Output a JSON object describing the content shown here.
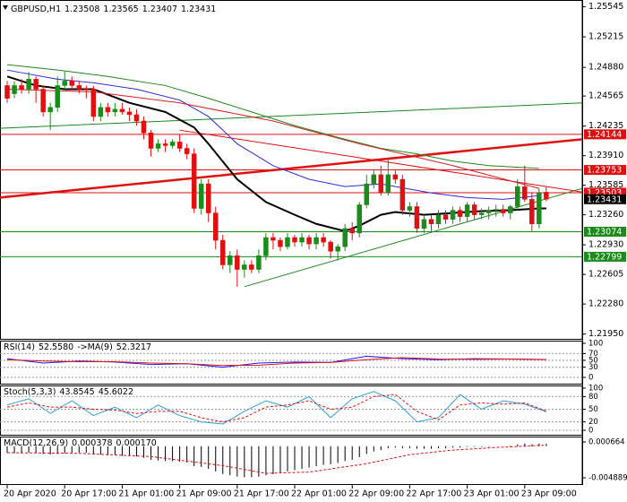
{
  "chart_data": {
    "type": "candlestick",
    "symbol": "GBPUSD,H1",
    "up_color": "#1a8c1a",
    "down_color": "#e01010",
    "current_color": "#000000",
    "xlim": [
      -1,
      80
    ],
    "xticks": [
      {
        "value": 0,
        "label": "20 Apr 2020"
      },
      {
        "value": 8,
        "label": "20 Apr 17:00"
      },
      {
        "value": 16,
        "label": "21 Apr 01:00"
      },
      {
        "value": 24,
        "label": "21 Apr 09:00"
      },
      {
        "value": 32,
        "label": "21 Apr 17:00"
      },
      {
        "value": 40,
        "label": "22 Apr 01:00"
      },
      {
        "value": 48,
        "label": "22 Apr 09:00"
      },
      {
        "value": 56,
        "label": "22 Apr 17:00"
      },
      {
        "value": 64,
        "label": "23 Apr 01:00"
      },
      {
        "value": 72,
        "label": "23 Apr 09:00"
      }
    ],
    "ylim": [
      1.21897,
      1.2562
    ],
    "yticks": [
      1.25545,
      1.25215,
      {
        "value": 1.2488,
        "label": "1.24880"
      },
      1.24565,
      1.24235,
      {
        "value": 1.2391,
        "label": "1.23910"
      },
      1.23585,
      {
        "value": 1.2326,
        "label": "1.23260"
      },
      {
        "value": 1.2293,
        "label": "1.22930"
      },
      1.22605,
      {
        "value": 1.2228,
        "label": "1.22280"
      },
      {
        "value": 1.2195,
        "label": "1.21950"
      }
    ],
    "candles": [
      [
        1.2468,
        1.2473,
        1.2449,
        1.2454
      ],
      [
        1.2459,
        1.2473,
        1.2454,
        1.2468
      ],
      [
        1.2468,
        1.2475,
        1.2459,
        1.2464
      ],
      [
        1.2464,
        1.2483,
        1.2459,
        1.2475
      ],
      [
        1.2475,
        1.2478,
        1.2449,
        1.2464
      ],
      [
        1.2464,
        1.2468,
        1.2434,
        1.2439
      ],
      [
        1.2439,
        1.2449,
        1.2419,
        1.2444
      ],
      [
        1.2444,
        1.2478,
        1.2439,
        1.2468
      ],
      [
        1.2468,
        1.2483,
        1.2464,
        1.2473
      ],
      [
        1.2473,
        1.2478,
        1.2464,
        1.2468
      ],
      [
        1.2468,
        1.2473,
        1.2459,
        1.2464
      ],
      [
        1.2464,
        1.2468,
        1.2454,
        1.2463
      ],
      [
        1.2464,
        1.2468,
        1.2429,
        1.2434
      ],
      [
        1.2434,
        1.2449,
        1.2429,
        1.2444
      ],
      [
        1.2444,
        1.2449,
        1.2434,
        1.2439
      ],
      [
        1.2439,
        1.2449,
        1.2434,
        1.2442
      ],
      [
        1.2442,
        1.2449,
        1.2436,
        1.2439
      ],
      [
        1.2439,
        1.2444,
        1.2429,
        1.2436
      ],
      [
        1.2436,
        1.2442,
        1.2424,
        1.2429
      ],
      [
        1.2429,
        1.2434,
        1.2409,
        1.2416
      ],
      [
        1.2416,
        1.2419,
        1.239,
        1.2399
      ],
      [
        1.2399,
        1.2409,
        1.2395,
        1.2404
      ],
      [
        1.2404,
        1.2409,
        1.2395,
        1.2402
      ],
      [
        1.2402,
        1.2409,
        1.2399,
        1.2406
      ],
      [
        1.2406,
        1.2414,
        1.2395,
        1.2399
      ],
      [
        1.2399,
        1.2404,
        1.2387,
        1.2393
      ],
      [
        1.2393,
        1.2399,
        1.2328,
        1.2333
      ],
      [
        1.2333,
        1.2365,
        1.2326,
        1.236
      ],
      [
        1.236,
        1.2365,
        1.2318,
        1.2328
      ],
      [
        1.2328,
        1.2335,
        1.2288,
        1.2298
      ],
      [
        1.2298,
        1.2304,
        1.2266,
        1.2271
      ],
      [
        1.2271,
        1.2286,
        1.2262,
        1.2281
      ],
      [
        1.2281,
        1.2288,
        1.2247,
        1.2266
      ],
      [
        1.2266,
        1.2276,
        1.2257,
        1.2271
      ],
      [
        1.2271,
        1.2276,
        1.2262,
        1.2266
      ],
      [
        1.2266,
        1.2288,
        1.2262,
        1.2281
      ],
      [
        1.2281,
        1.2306,
        1.2276,
        1.2301
      ],
      [
        1.2301,
        1.2306,
        1.2288,
        1.2298
      ],
      [
        1.2298,
        1.2301,
        1.2286,
        1.2291
      ],
      [
        1.2291,
        1.2306,
        1.2288,
        1.2301
      ],
      [
        1.2301,
        1.2304,
        1.2291,
        1.2296
      ],
      [
        1.2296,
        1.2306,
        1.2291,
        1.2301
      ],
      [
        1.2301,
        1.2304,
        1.2288,
        1.2294
      ],
      [
        1.2294,
        1.2306,
        1.2288,
        1.2301
      ],
      [
        1.2301,
        1.2306,
        1.2291,
        1.2296
      ],
      [
        1.2296,
        1.2298,
        1.2278,
        1.2286
      ],
      [
        1.2286,
        1.2294,
        1.2276,
        1.2291
      ],
      [
        1.2291,
        1.2316,
        1.2286,
        1.2311
      ],
      [
        1.2311,
        1.2318,
        1.2298,
        1.2306
      ],
      [
        1.2306,
        1.234,
        1.2301,
        1.2337
      ],
      [
        1.2337,
        1.237,
        1.2333,
        1.236
      ],
      [
        1.236,
        1.2375,
        1.2355,
        1.237
      ],
      [
        1.237,
        1.238,
        1.2347,
        1.235
      ],
      [
        1.235,
        1.2387,
        1.2347,
        1.237
      ],
      [
        1.237,
        1.2375,
        1.236,
        1.2365
      ],
      [
        1.2365,
        1.237,
        1.2326,
        1.2331
      ],
      [
        1.2331,
        1.234,
        1.2324,
        1.2335
      ],
      [
        1.2335,
        1.234,
        1.2306,
        1.2311
      ],
      [
        1.2311,
        1.2326,
        1.2306,
        1.2321
      ],
      [
        1.2321,
        1.2326,
        1.2308,
        1.2316
      ],
      [
        1.2316,
        1.2331,
        1.2311,
        1.2326
      ],
      [
        1.2326,
        1.2331,
        1.2316,
        1.2321
      ],
      [
        1.2321,
        1.2335,
        1.2316,
        1.2331
      ],
      [
        1.2331,
        1.2335,
        1.2318,
        1.2324
      ],
      [
        1.2324,
        1.234,
        1.2318,
        1.2337
      ],
      [
        1.2337,
        1.234,
        1.2321,
        1.2326
      ],
      [
        1.2326,
        1.2333,
        1.2321,
        1.2328
      ],
      [
        1.2328,
        1.2335,
        1.2321,
        1.2331
      ],
      [
        1.2331,
        1.2337,
        1.2324,
        1.2332
      ],
      [
        1.2332,
        1.2337,
        1.2324,
        1.2328
      ],
      [
        1.2328,
        1.2337,
        1.2321,
        1.2335
      ],
      [
        1.2335,
        1.2365,
        1.2331,
        1.2357
      ],
      [
        1.2357,
        1.238,
        1.234,
        1.2343
      ],
      [
        1.2343,
        1.235,
        1.2308,
        1.2316
      ],
      [
        1.2316,
        1.2355,
        1.2311,
        1.235
      ],
      [
        1.23508,
        1.23565,
        1.23407,
        1.23431
      ]
    ],
    "moving_averages": [
      {
        "color": "#000000",
        "width": 2,
        "x": [
          0,
          4,
          8,
          12,
          17,
          22,
          26,
          28,
          32,
          36,
          40,
          43,
          47,
          49,
          52,
          54,
          58,
          62,
          66,
          70,
          74,
          75
        ],
        "values": [
          1.2478,
          1.2468,
          1.2464,
          1.2464,
          1.2449,
          1.2439,
          1.2422,
          1.2404,
          1.2365,
          1.234,
          1.2326,
          1.2316,
          1.2308,
          1.2314,
          1.2326,
          1.2329,
          1.2326,
          1.2328,
          1.233,
          1.2331,
          1.2333,
          1.2333
        ]
      },
      {
        "color": "#2b2bd9",
        "width": 1,
        "x": [
          0,
          7,
          12,
          18,
          24,
          28,
          32,
          37,
          42,
          47,
          52,
          54,
          59,
          64,
          69,
          74
        ],
        "values": [
          1.2485,
          1.2475,
          1.2471,
          1.2464,
          1.2452,
          1.2434,
          1.2404,
          1.238,
          1.2365,
          1.2357,
          1.236,
          1.2357,
          1.235,
          1.2345,
          1.2343,
          1.2347
        ]
      },
      {
        "color": "#1b8a1b",
        "width": 1,
        "x": [
          0,
          7,
          14,
          22,
          28,
          34,
          40,
          47,
          52,
          57,
          62,
          67,
          74
        ],
        "values": [
          1.2491,
          1.2485,
          1.2478,
          1.2468,
          1.2454,
          1.2439,
          1.2424,
          1.2409,
          1.2399,
          1.2393,
          1.2385,
          1.238,
          1.2377
        ]
      },
      {
        "color": "#d22222",
        "width": 1,
        "x": [
          0,
          12,
          24,
          37,
          49,
          62,
          74
        ],
        "values": [
          1.2464,
          1.2461,
          1.2449,
          1.2429,
          1.2404,
          1.238,
          1.2355
        ]
      }
    ],
    "trendlines": [
      {
        "color": "#e01010",
        "width": 2.5,
        "x": [
          -1,
          80
        ],
        "values": [
          1.2345,
          1.2409
        ]
      },
      {
        "color": "#1b8a1b",
        "width": 1,
        "x": [
          -1,
          80
        ],
        "values": [
          1.2421,
          1.2449
        ]
      },
      {
        "color": "#1b8a1b",
        "width": 1,
        "x": [
          33,
          80
        ],
        "values": [
          1.2247,
          1.2355
        ]
      },
      {
        "color": "#e01010",
        "width": 1,
        "x": [
          24,
          80
        ],
        "values": [
          1.2419,
          1.2351
        ]
      }
    ],
    "levels": [
      {
        "value": 1.24144,
        "color": "#e01010"
      },
      {
        "value": 1.23753,
        "color": "#e01010"
      },
      {
        "value": 1.23503,
        "color": "#e01010"
      },
      {
        "value": 1.23074,
        "color": "#1a8c1a"
      },
      {
        "value": 1.22799,
        "color": "#1a8c1a"
      }
    ],
    "indicators": [
      {
        "ylim": [
          -18.4,
          107.9
        ],
        "yticks": [
          100,
          70,
          50,
          30,
          0
        ],
        "dashed_ticks": true,
        "series": [
          {
            "name": "RSI(14)",
            "color": "#1a1aff",
            "style": "line",
            "x": [
              0,
              5,
              10,
              15,
              20,
              25,
              30,
              35,
              40,
              45,
              50,
              55,
              60,
              65,
              70,
              75
            ],
            "values": [
              55,
              42,
              48,
              45,
              38,
              40,
              30,
              42,
              45,
              44,
              62,
              55,
              52,
              55,
              54,
              52.558
            ],
            "value_label": "52.5580"
          },
          {
            "name": "->MA(9)",
            "color": "#e01010",
            "style": "line",
            "x": [
              0,
              5,
              10,
              15,
              20,
              25,
              30,
              35,
              40,
              45,
              50,
              55,
              60,
              65,
              70,
              75
            ],
            "values": [
              52,
              48,
              46,
              46,
              42,
              40,
              35,
              36,
              42,
              44,
              52,
              58,
              54,
              53,
              54,
              52.3217
            ],
            "value_label": "52.3217"
          }
        ]
      },
      {
        "ylim": [
          -10.6,
          106.4
        ],
        "yticks": [
          100,
          80,
          50,
          20,
          0
        ],
        "dashed_ticks": true,
        "series": [
          {
            "name": "Stoch(5,3,3)",
            "color": "#2f9fd0",
            "style": "line",
            "x": [
              0,
              3,
              6,
              9,
              12,
              15,
              18,
              21,
              24,
              27,
              30,
              33,
              36,
              39,
              42,
              45,
              48,
              51,
              54,
              57,
              60,
              63,
              66,
              69,
              72,
              75
            ],
            "values": [
              60,
              75,
              40,
              70,
              35,
              55,
              30,
              60,
              35,
              20,
              15,
              45,
              70,
              55,
              80,
              30,
              75,
              92,
              70,
              20,
              30,
              85,
              50,
              70,
              62,
              43.8545
            ],
            "value_label": "43.8545"
          },
          {
            "color": "#e01010",
            "style": "dashed",
            "x": [
              0,
              3,
              6,
              9,
              12,
              15,
              18,
              21,
              24,
              27,
              30,
              33,
              36,
              39,
              42,
              45,
              48,
              51,
              54,
              57,
              60,
              63,
              66,
              69,
              72,
              75
            ],
            "values": [
              55,
              65,
              55,
              55,
              50,
              48,
              40,
              45,
              45,
              30,
              20,
              30,
              55,
              60,
              70,
              50,
              55,
              80,
              85,
              45,
              25,
              60,
              65,
              62,
              65,
              45.6022
            ],
            "value_label": "45.6022"
          }
        ]
      },
      {
        "ylim": [
          -0.005861,
          0.001497
        ],
        "yticks": [
          0.000664,
          -0.004889
        ],
        "dashed_ticks": false,
        "series": [
          {
            "name": "MACD(12,26,9)",
            "color": "#000000",
            "style": "bars",
            "values": [
              -0.001,
              -0.0011,
              -0.0011,
              -0.001,
              -0.001,
              -0.0012,
              -0.0013,
              -0.0012,
              -0.0011,
              -0.001,
              -0.001,
              -0.001,
              -0.0012,
              -0.0013,
              -0.0014,
              -0.0014,
              -0.0015,
              -0.0015,
              -0.0016,
              -0.0018,
              -0.0021,
              -0.0022,
              -0.0023,
              -0.0023,
              -0.0024,
              -0.0025,
              -0.0031,
              -0.0032,
              -0.0035,
              -0.0039,
              -0.0043,
              -0.0045,
              -0.0047,
              -0.0048,
              -0.0048,
              -0.0047,
              -0.0045,
              -0.0043,
              -0.0041,
              -0.0039,
              -0.0037,
              -0.0035,
              -0.0033,
              -0.0031,
              -0.0029,
              -0.0028,
              -0.0026,
              -0.0023,
              -0.0021,
              -0.0017,
              -0.0012,
              -0.0008,
              -0.0006,
              -0.0003,
              -0.0002,
              -0.0003,
              -0.0003,
              -0.0004,
              -0.0004,
              -0.0004,
              -0.0003,
              -0.0003,
              -0.0002,
              -0.0002,
              -0.0001,
              -0.0001,
              -0.0001,
              -0.0001,
              0,
              0,
              0.0001,
              0.0003,
              0.0004,
              0.0003,
              0.0004,
              0.000378
            ],
            "value_label": "0.000378"
          },
          {
            "color": "#e01010",
            "style": "dashed",
            "x": [
              0,
              10,
              20,
              30,
              36,
              42,
              50,
              56,
              62,
              68,
              75
            ],
            "values": [
              -0.001,
              -0.0011,
              -0.0016,
              -0.003,
              -0.0042,
              -0.004,
              -0.0027,
              -0.0013,
              -0.0006,
              -0.0002,
              0.00017
            ],
            "value_label": "0.000170"
          }
        ]
      }
    ]
  }
}
